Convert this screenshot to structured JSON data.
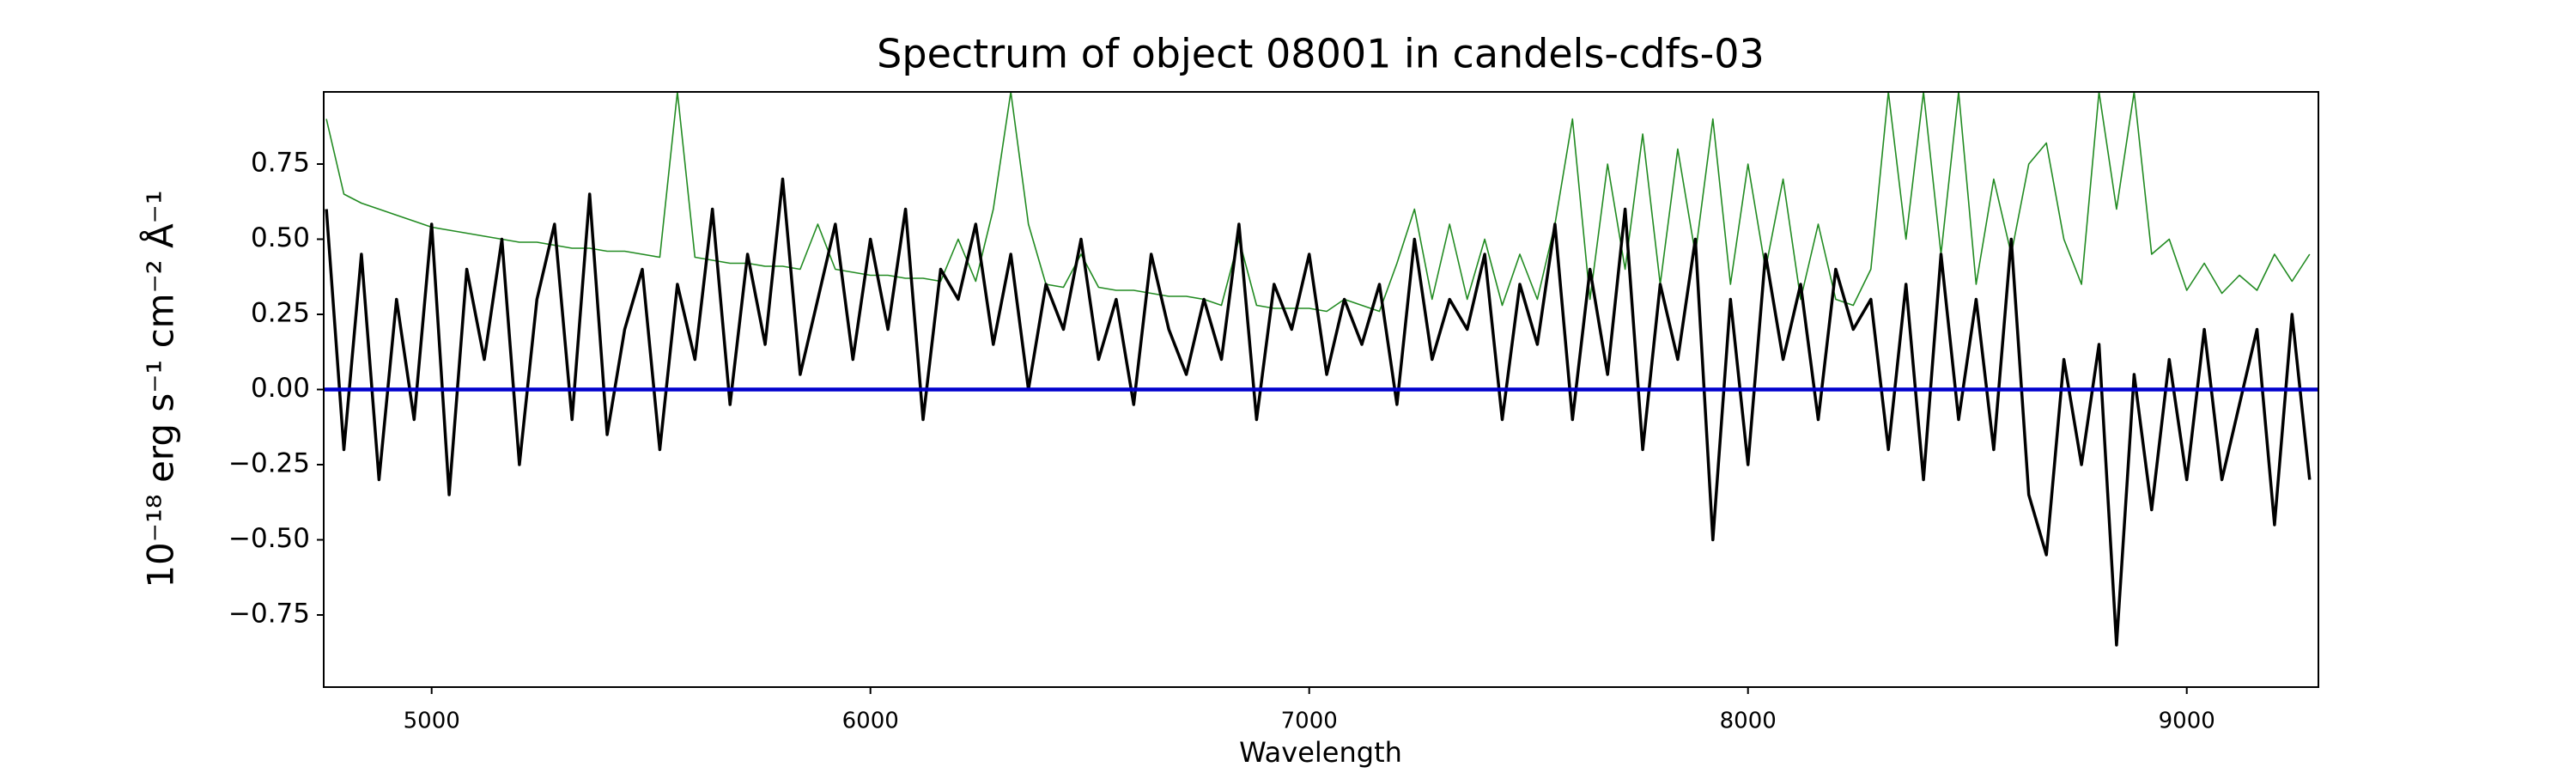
{
  "chart_data": {
    "type": "line",
    "title": "Spectrum of object 08001 in candels-cdfs-03",
    "xlabel": "Wavelength",
    "ylabel": "10⁻¹⁸ erg s⁻¹ cm⁻² Å⁻¹",
    "xlim": [
      4754,
      9300
    ],
    "ylim": [
      -0.99,
      0.99
    ],
    "xticks": [
      5000,
      6000,
      7000,
      8000,
      9000
    ],
    "yticks": [
      {
        "value": -0.75,
        "label": "−0.75"
      },
      {
        "value": -0.5,
        "label": "−0.50"
      },
      {
        "value": -0.25,
        "label": "−0.25"
      },
      {
        "value": 0,
        "label": "0.00"
      },
      0.25,
      {
        "value": 0.5,
        "label": "0.50"
      },
      0.75
    ],
    "grid": false,
    "x": [
      4760,
      4800,
      4840,
      4880,
      4920,
      4960,
      5000,
      5040,
      5080,
      5120,
      5160,
      5200,
      5240,
      5280,
      5320,
      5360,
      5400,
      5440,
      5480,
      5520,
      5560,
      5600,
      5640,
      5680,
      5720,
      5760,
      5800,
      5840,
      5880,
      5920,
      5960,
      6000,
      6040,
      6080,
      6120,
      6160,
      6200,
      6240,
      6280,
      6320,
      6360,
      6400,
      6440,
      6480,
      6520,
      6560,
      6600,
      6640,
      6680,
      6720,
      6760,
      6800,
      6840,
      6880,
      6920,
      6960,
      7000,
      7040,
      7080,
      7120,
      7160,
      7200,
      7240,
      7280,
      7320,
      7360,
      7400,
      7440,
      7480,
      7520,
      7560,
      7600,
      7640,
      7680,
      7720,
      7760,
      7800,
      7840,
      7880,
      7920,
      7960,
      8000,
      8040,
      8080,
      8120,
      8160,
      8200,
      8240,
      8280,
      8320,
      8360,
      8400,
      8440,
      8480,
      8520,
      8560,
      8600,
      8640,
      8680,
      8720,
      8760,
      8800,
      8840,
      8880,
      8920,
      8960,
      9000,
      9040,
      9080,
      9120,
      9160,
      9200,
      9240,
      9280
    ],
    "series": [
      {
        "color": "#228b22",
        "width": 1.6,
        "values": [
          0.9,
          0.65,
          0.62,
          0.6,
          0.58,
          0.56,
          0.54,
          0.53,
          0.52,
          0.51,
          0.5,
          0.49,
          0.49,
          0.48,
          0.47,
          0.47,
          0.46,
          0.46,
          0.45,
          0.44,
          0.99,
          0.44,
          0.43,
          0.42,
          0.42,
          0.41,
          0.41,
          0.4,
          0.55,
          0.4,
          0.39,
          0.38,
          0.38,
          0.37,
          0.37,
          0.36,
          0.5,
          0.36,
          0.6,
          0.99,
          0.55,
          0.35,
          0.34,
          0.45,
          0.34,
          0.33,
          0.33,
          0.32,
          0.31,
          0.31,
          0.3,
          0.28,
          0.5,
          0.28,
          0.27,
          0.27,
          0.27,
          0.26,
          0.3,
          0.28,
          0.26,
          0.42,
          0.6,
          0.3,
          0.55,
          0.3,
          0.5,
          0.28,
          0.45,
          0.3,
          0.55,
          0.9,
          0.3,
          0.75,
          0.4,
          0.85,
          0.35,
          0.8,
          0.45,
          0.9,
          0.35,
          0.75,
          0.4,
          0.7,
          0.3,
          0.55,
          0.3,
          0.28,
          0.4,
          0.99,
          0.5,
          0.99,
          0.45,
          0.99,
          0.35,
          0.7,
          0.45,
          0.75,
          0.82,
          0.5,
          0.35,
          0.99,
          0.6,
          0.99,
          0.45,
          0.5,
          0.33,
          0.42,
          0.32,
          0.38,
          0.33,
          0.45,
          0.36,
          0.45
        ]
      },
      {
        "color": "#000000",
        "width": 3.5,
        "values": [
          0.6,
          -0.2,
          0.45,
          -0.3,
          0.3,
          -0.1,
          0.55,
          -0.35,
          0.4,
          0.1,
          0.5,
          -0.25,
          0.3,
          0.55,
          -0.1,
          0.65,
          -0.15,
          0.2,
          0.4,
          -0.2,
          0.35,
          0.1,
          0.6,
          -0.05,
          0.45,
          0.15,
          0.7,
          0.05,
          0.3,
          0.55,
          0.1,
          0.5,
          0.2,
          0.6,
          -0.1,
          0.4,
          0.3,
          0.55,
          0.15,
          0.45,
          0.0,
          0.35,
          0.2,
          0.5,
          0.1,
          0.3,
          -0.05,
          0.45,
          0.2,
          0.05,
          0.3,
          0.1,
          0.55,
          -0.1,
          0.35,
          0.2,
          0.45,
          0.05,
          0.3,
          0.15,
          0.35,
          -0.05,
          0.5,
          0.1,
          0.3,
          0.2,
          0.45,
          -0.1,
          0.35,
          0.15,
          0.55,
          -0.1,
          0.4,
          0.05,
          0.6,
          -0.2,
          0.35,
          0.1,
          0.5,
          -0.5,
          0.3,
          -0.25,
          0.45,
          0.1,
          0.35,
          -0.1,
          0.4,
          0.2,
          0.3,
          -0.2,
          0.35,
          -0.3,
          0.45,
          -0.1,
          0.3,
          -0.2,
          0.5,
          -0.35,
          -0.55,
          0.1,
          -0.25,
          0.15,
          -0.85,
          0.05,
          -0.4,
          0.1,
          -0.3,
          0.2,
          -0.3,
          -0.05,
          0.2,
          -0.45,
          0.25,
          -0.3
        ]
      },
      {
        "color": "#0000cd",
        "width": 4.5,
        "x": [
          4754,
          9300
        ],
        "values": [
          0,
          0
        ]
      }
    ]
  }
}
